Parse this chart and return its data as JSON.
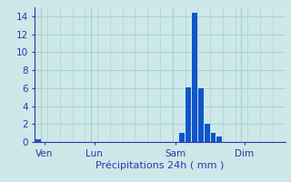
{
  "title": "",
  "xlabel": "Précipitations 24h ( mm )",
  "ylabel": "",
  "background_color": "#cce8e8",
  "bar_color": "#1155cc",
  "grid_color": "#aacccc",
  "axis_color": "#3333aa",
  "text_color": "#3333aa",
  "ylim": [
    0,
    15
  ],
  "yticks": [
    0,
    2,
    4,
    6,
    8,
    10,
    12,
    14
  ],
  "num_bars": 40,
  "day_labels": [
    "Ven",
    "Lun",
    "Sam",
    "Dim"
  ],
  "day_positions": [
    1,
    9,
    22,
    33
  ],
  "bar_values": [
    0.3,
    0,
    0,
    0,
    0,
    0,
    0,
    0,
    0,
    0,
    0,
    0,
    0,
    0,
    0,
    0,
    0,
    0,
    0,
    0,
    0,
    0,
    0,
    1.0,
    6.1,
    14.4,
    6.0,
    2.0,
    1.0,
    0.6,
    0,
    0,
    0,
    0,
    0,
    0,
    0,
    0,
    0,
    0
  ]
}
